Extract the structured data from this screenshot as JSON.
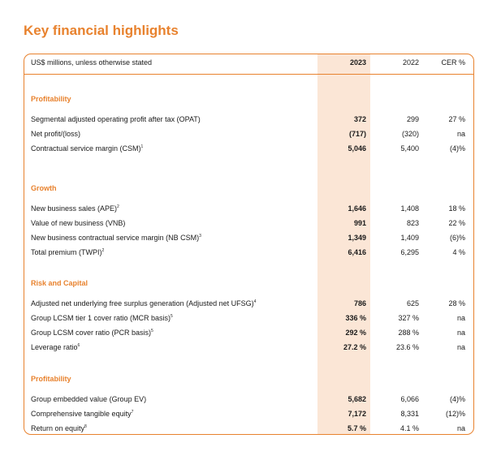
{
  "title": "Key financial highlights",
  "header": {
    "label": "US$ millions, unless otherwise stated",
    "col1": "2023",
    "col2": "2022",
    "col3": "CER %"
  },
  "sections": [
    {
      "heading": "Profitability",
      "rows": [
        {
          "label": "Segmental adjusted operating profit after tax (OPAT)",
          "sup": "",
          "v2023": "372",
          "v2022": "299",
          "cer": "27 %"
        },
        {
          "label": "Net profit/(loss)",
          "sup": "",
          "v2023": "(717)",
          "v2022": "(320)",
          "cer": "na"
        },
        {
          "label": "Contractual service margin (CSM)",
          "sup": "1",
          "v2023": "5,046",
          "v2022": "5,400",
          "cer": "(4)%"
        }
      ]
    },
    {
      "heading": "Growth",
      "rows": [
        {
          "label": "New business sales (APE)",
          "sup": "2",
          "v2023": "1,646",
          "v2022": "1,408",
          "cer": "18 %"
        },
        {
          "label": "Value of new business (VNB)",
          "sup": "",
          "v2023": "991",
          "v2022": "823",
          "cer": "22 %"
        },
        {
          "label": "New business contractual service margin (NB CSM)",
          "sup": "3",
          "v2023": "1,349",
          "v2022": "1,409",
          "cer": "(6)%"
        },
        {
          "label": "Total premium (TWPI)",
          "sup": "2",
          "v2023": "6,416",
          "v2022": "6,295",
          "cer": "4 %"
        }
      ]
    },
    {
      "heading": "Risk and Capital",
      "rows": [
        {
          "label": "Adjusted net underlying free surplus generation (Adjusted net UFSG)",
          "sup": "4",
          "v2023": "786",
          "v2022": "625",
          "cer": "28 %"
        },
        {
          "label": "Group LCSM tier 1 cover ratio (MCR basis)",
          "sup": "5",
          "v2023": "336 %",
          "v2022": "327 %",
          "cer": "na"
        },
        {
          "label": "Group LCSM cover ratio (PCR basis)",
          "sup": "5",
          "v2023": "292 %",
          "v2022": "288 %",
          "cer": "na"
        },
        {
          "label": "Leverage ratio",
          "sup": "6",
          "v2023": "27.2 %",
          "v2022": "23.6 %",
          "cer": "na"
        }
      ]
    },
    {
      "heading": "Profitability",
      "rows": [
        {
          "label": "Group embedded value (Group EV)",
          "sup": "",
          "v2023": "5,682",
          "v2022": "6,066",
          "cer": "(4)%"
        },
        {
          "label": "Comprehensive tangible equity",
          "sup": "7",
          "v2023": "7,172",
          "v2022": "8,331",
          "cer": "(12)%"
        },
        {
          "label": "Return on equity",
          "sup": "8",
          "v2023": "5.7 %",
          "v2022": "4.1 %",
          "cer": "na"
        }
      ]
    }
  ]
}
